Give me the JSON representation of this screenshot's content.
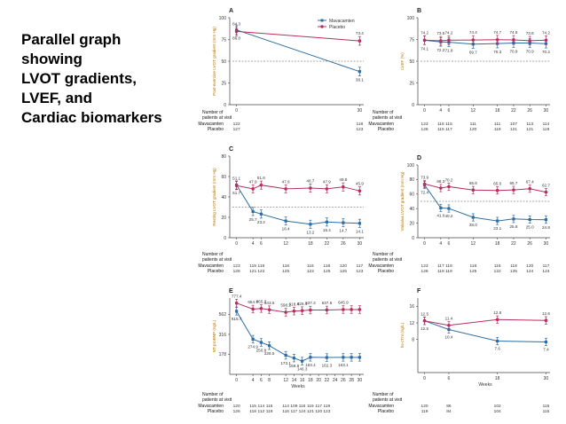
{
  "slide": {
    "title_lines": [
      "Parallel graph",
      "showing",
      "LVOT gradients,",
      "LVEF, and",
      "Cardiac biomarkers"
    ]
  },
  "colors": {
    "mavacamten": "#2e6da4",
    "placebo": "#b5305f",
    "axis": "#444444",
    "reference": "#555555"
  },
  "legend": {
    "mavacamten": "Mavacamten",
    "placebo": "Placebo"
  },
  "patients_header": [
    "Number of",
    "patients at visit"
  ],
  "patients_label_mava": "Mavacamten",
  "patients_label_plac": "Placebo",
  "chart_data": [
    {
      "id": "A",
      "type": "line",
      "letter": "A",
      "ylabel": "Post-exercise LVOT gradient (mm Hg)",
      "xlabel": "",
      "ylim": [
        0,
        100
      ],
      "yticks": [
        0,
        25,
        50,
        75,
        100
      ],
      "ytick_labels": [
        "0",
        "25",
        "50",
        "75",
        "100"
      ],
      "xlim": [
        -1,
        31
      ],
      "xticks": [
        0,
        30
      ],
      "xtick_labels": [
        "0",
        "30"
      ],
      "reference_line": 50,
      "series": [
        {
          "name": "Mavacamten",
          "x": [
            0,
            30
          ],
          "values": [
            86.0,
            38.1
          ],
          "labels": [
            "86.0",
            "38.1"
          ]
        },
        {
          "name": "Placebo",
          "x": [
            0,
            30
          ],
          "values": [
            84.3,
            73.4
          ],
          "labels": [
            "84.3",
            "73.4"
          ]
        }
      ],
      "patients_x": [
        0,
        30
      ],
      "patients_mava": [
        "122",
        "118"
      ],
      "patients_plac": [
        "127",
        "123"
      ]
    },
    {
      "id": "B",
      "type": "line",
      "letter": "B",
      "ylabel": "LVEF (%)",
      "xlabel": "",
      "ylim": [
        0,
        100
      ],
      "yticks": [
        0,
        25,
        50,
        75,
        100
      ],
      "ytick_labels": [
        "0",
        "25",
        "50",
        "75",
        "100"
      ],
      "xlim": [
        -1,
        31
      ],
      "xticks": [
        0,
        4,
        6,
        12,
        18,
        22,
        26,
        30
      ],
      "xtick_labels": [
        "0",
        "4",
        "6",
        "12",
        "18",
        "22",
        "26",
        "30"
      ],
      "reference_line": 50,
      "series": [
        {
          "name": "Mavacamten",
          "x": [
            0,
            4,
            6,
            12,
            18,
            22,
            26,
            30
          ],
          "values": [
            74.1,
            72.2,
            71.8,
            69.7,
            70.3,
            70.9,
            70.9,
            70.2
          ],
          "labels": [
            "74.1",
            "72.2",
            "71.8",
            "69.7",
            "70.3",
            "70.9",
            "70.9",
            "70.2"
          ]
        },
        {
          "name": "Placebo",
          "x": [
            0,
            4,
            6,
            12,
            18,
            22,
            26,
            30
          ],
          "values": [
            74.2,
            73.5,
            74.2,
            74.4,
            74.7,
            74.5,
            73.6,
            74.2
          ],
          "labels": [
            "74.2",
            "73.5",
            "74.2",
            "74.4",
            "74.7",
            "74.5",
            "73.6",
            "74.2"
          ]
        }
      ],
      "patients_x": [
        0,
        4,
        6,
        12,
        18,
        22,
        26,
        30
      ],
      "patients_mava": [
        "123",
        "116",
        "115",
        "111",
        "111",
        "107",
        "113",
        "114"
      ],
      "patients_plac": [
        "128",
        "115",
        "117",
        "120",
        "119",
        "121",
        "121",
        "119"
      ]
    },
    {
      "id": "C",
      "type": "line",
      "letter": "C",
      "ylabel": "Resting LVOT gradient (mm Hg)",
      "xlabel": "",
      "ylim": [
        0,
        80
      ],
      "yticks": [
        0,
        20,
        40,
        60,
        80
      ],
      "ytick_labels": [
        "0",
        "20",
        "40",
        "60",
        "80"
      ],
      "xlim": [
        -1,
        31
      ],
      "xticks": [
        0,
        4,
        6,
        12,
        18,
        22,
        26,
        30
      ],
      "xtick_labels": [
        "0",
        "4",
        "6",
        "12",
        "18",
        "22",
        "26",
        "30"
      ],
      "reference_line": 30,
      "series": [
        {
          "name": "Mavacamten",
          "x": [
            0,
            4,
            6,
            12,
            18,
            22,
            26,
            30
          ],
          "values": [
            51.7,
            25.7,
            23.2,
            16.4,
            13.2,
            15.4,
            14.7,
            14.1
          ],
          "labels": [
            "51.7",
            "25.7",
            "23.2",
            "16.4",
            "13.2",
            "15.4",
            "14.7",
            "14.1"
          ]
        },
        {
          "name": "Placebo",
          "x": [
            0,
            4,
            6,
            12,
            18,
            22,
            26,
            30
          ],
          "values": [
            51.1,
            47.9,
            51.6,
            47.9,
            48.7,
            47.9,
            49.8,
            45.9
          ],
          "labels": [
            "51.1",
            "47.9",
            "51.6",
            "47.9",
            "48.7",
            "47.9",
            "49.8",
            "45.9"
          ]
        }
      ],
      "patients_x": [
        0,
        4,
        6,
        12,
        18,
        22,
        26,
        30
      ],
      "patients_mava": [
        "123",
        "119",
        "119",
        "118",
        "116",
        "118",
        "120",
        "117"
      ],
      "patients_plac": [
        "128",
        "121",
        "122",
        "125",
        "122",
        "125",
        "125",
        "123"
      ]
    },
    {
      "id": "D",
      "type": "line",
      "letter": "D",
      "ylabel": "Valsalva LVOT gradient (mm Hg)",
      "xlabel": "",
      "ylim": [
        0,
        100
      ],
      "yticks": [
        0,
        20,
        40,
        60,
        80,
        100
      ],
      "ytick_labels": [
        "0",
        "20",
        "40",
        "60",
        "80",
        "100"
      ],
      "xlim": [
        -1,
        31
      ],
      "xticks": [
        0,
        4,
        6,
        12,
        18,
        22,
        26,
        30
      ],
      "xtick_labels": [
        "0",
        "4",
        "6",
        "12",
        "18",
        "22",
        "26",
        "30"
      ],
      "reference_line": 50,
      "series": [
        {
          "name": "Mavacamten",
          "x": [
            0,
            4,
            6,
            12,
            18,
            22,
            26,
            30
          ],
          "values": [
            72.4,
            41.0,
            40.2,
            28.0,
            23.1,
            25.8,
            25.0,
            24.8
          ],
          "labels": [
            "72.4",
            "41.0",
            "40.2",
            "28.0",
            "23.1",
            "25.8",
            "25.0",
            "24.8"
          ]
        },
        {
          "name": "Placebo",
          "x": [
            0,
            4,
            6,
            12,
            18,
            22,
            26,
            30
          ],
          "values": [
            73.9,
            68.3,
            70.2,
            65.6,
            65.0,
            65.7,
            67.4,
            62.7
          ],
          "labels": [
            "73.9",
            "68.3",
            "70.2",
            "65.6",
            "65.0",
            "65.7",
            "67.4",
            "62.7"
          ]
        }
      ],
      "patients_x": [
        0,
        4,
        6,
        12,
        18,
        22,
        26,
        30
      ],
      "patients_mava": [
        "123",
        "117",
        "118",
        "118",
        "116",
        "118",
        "120",
        "117"
      ],
      "patients_plac": [
        "128",
        "119",
        "119",
        "125",
        "122",
        "125",
        "124",
        "124"
      ]
    },
    {
      "id": "E",
      "type": "line",
      "letter": "E",
      "ylabel": "NT-proBNP (ng/L)",
      "xlabel": "Weeks",
      "ylim": [
        100,
        900
      ],
      "yticks": [
        178,
        316,
        562
      ],
      "ytick_labels": [
        "178",
        "316",
        "562"
      ],
      "xlim": [
        -1,
        31
      ],
      "xticks": [
        0,
        4,
        6,
        8,
        12,
        14,
        16,
        18,
        20,
        22,
        24,
        26,
        28,
        30
      ],
      "xtick_labels": [
        "0",
        "4",
        "6",
        "8",
        "12",
        "14",
        "16",
        "18",
        "20",
        "22",
        "24",
        "26",
        "28",
        "30"
      ],
      "reference_line": null,
      "series": [
        {
          "name": "Mavacamten",
          "x": [
            0,
            4,
            6,
            8,
            12,
            14,
            16,
            18,
            22,
            26,
            28,
            30
          ],
          "values": [
            615.7,
            274.9,
            250.8,
            228.5,
            173.1,
            159.8,
            146.3,
            163.4,
            162.3,
            163.1,
            163.1,
            163.1
          ],
          "labels": [
            "615.7",
            "274.9",
            "250.8",
            "228.5",
            "173.1",
            "159.8",
            "146.3",
            "163.4",
            "162.3",
            "163.1",
            "",
            ""
          ]
        },
        {
          "name": "Placebo",
          "x": [
            0,
            4,
            6,
            8,
            12,
            14,
            16,
            18,
            22,
            26,
            28,
            30
          ],
          "values": [
            777.4,
            654.7,
            665.3,
            643.5,
            598.2,
            618.4,
            626.4,
            637.3,
            637.8,
            645.9,
            645.9,
            645.9
          ],
          "labels": [
            "777.4",
            "654.7",
            "665.3",
            "643.5",
            "598.2",
            "618.4",
            "626.4",
            "637.3",
            "637.8",
            "645.9",
            "",
            ""
          ]
        }
      ],
      "patients_x": [
        0,
        4,
        6,
        8,
        12,
        14,
        16,
        18,
        20,
        22,
        26,
        30
      ],
      "patients_mava": [
        "120",
        "115",
        "114",
        "115",
        "114",
        "109",
        "115",
        "115",
        "117",
        "119",
        "",
        ""
      ],
      "patients_plac": [
        "126",
        "118",
        "112",
        "119",
        "116",
        "117",
        "124",
        "121",
        "120",
        "123",
        "",
        ""
      ]
    },
    {
      "id": "F",
      "type": "line",
      "letter": "F",
      "ylabel": "hs-cTnI (ng/L)",
      "xlabel": "Weeks",
      "ylim": [
        0,
        18
      ],
      "yticks": [
        8,
        12,
        16
      ],
      "ytick_labels": [
        "8",
        "12",
        "16"
      ],
      "xlim": [
        -1,
        31
      ],
      "xticks": [
        0,
        6,
        18,
        30
      ],
      "xtick_labels": [
        "0",
        "6",
        "18",
        "30"
      ],
      "reference_line": null,
      "series": [
        {
          "name": "Mavacamten",
          "x": [
            0,
            6,
            18,
            30
          ],
          "values": [
            12.5,
            10.4,
            7.6,
            7.4
          ],
          "labels": [
            "12.5",
            "10.4",
            "7.6",
            "7.4"
          ]
        },
        {
          "name": "Placebo",
          "x": [
            0,
            6,
            18,
            30
          ],
          "values": [
            12.5,
            11.4,
            12.8,
            12.6
          ],
          "labels": [
            "12.5",
            "11.4",
            "12.8",
            "12.6"
          ]
        }
      ],
      "patients_x": [
        0,
        6,
        18,
        30
      ],
      "patients_mava": [
        "120",
        "86",
        "102",
        "115"
      ],
      "patients_plac": [
        "119",
        "84",
        "104",
        "115"
      ]
    }
  ]
}
